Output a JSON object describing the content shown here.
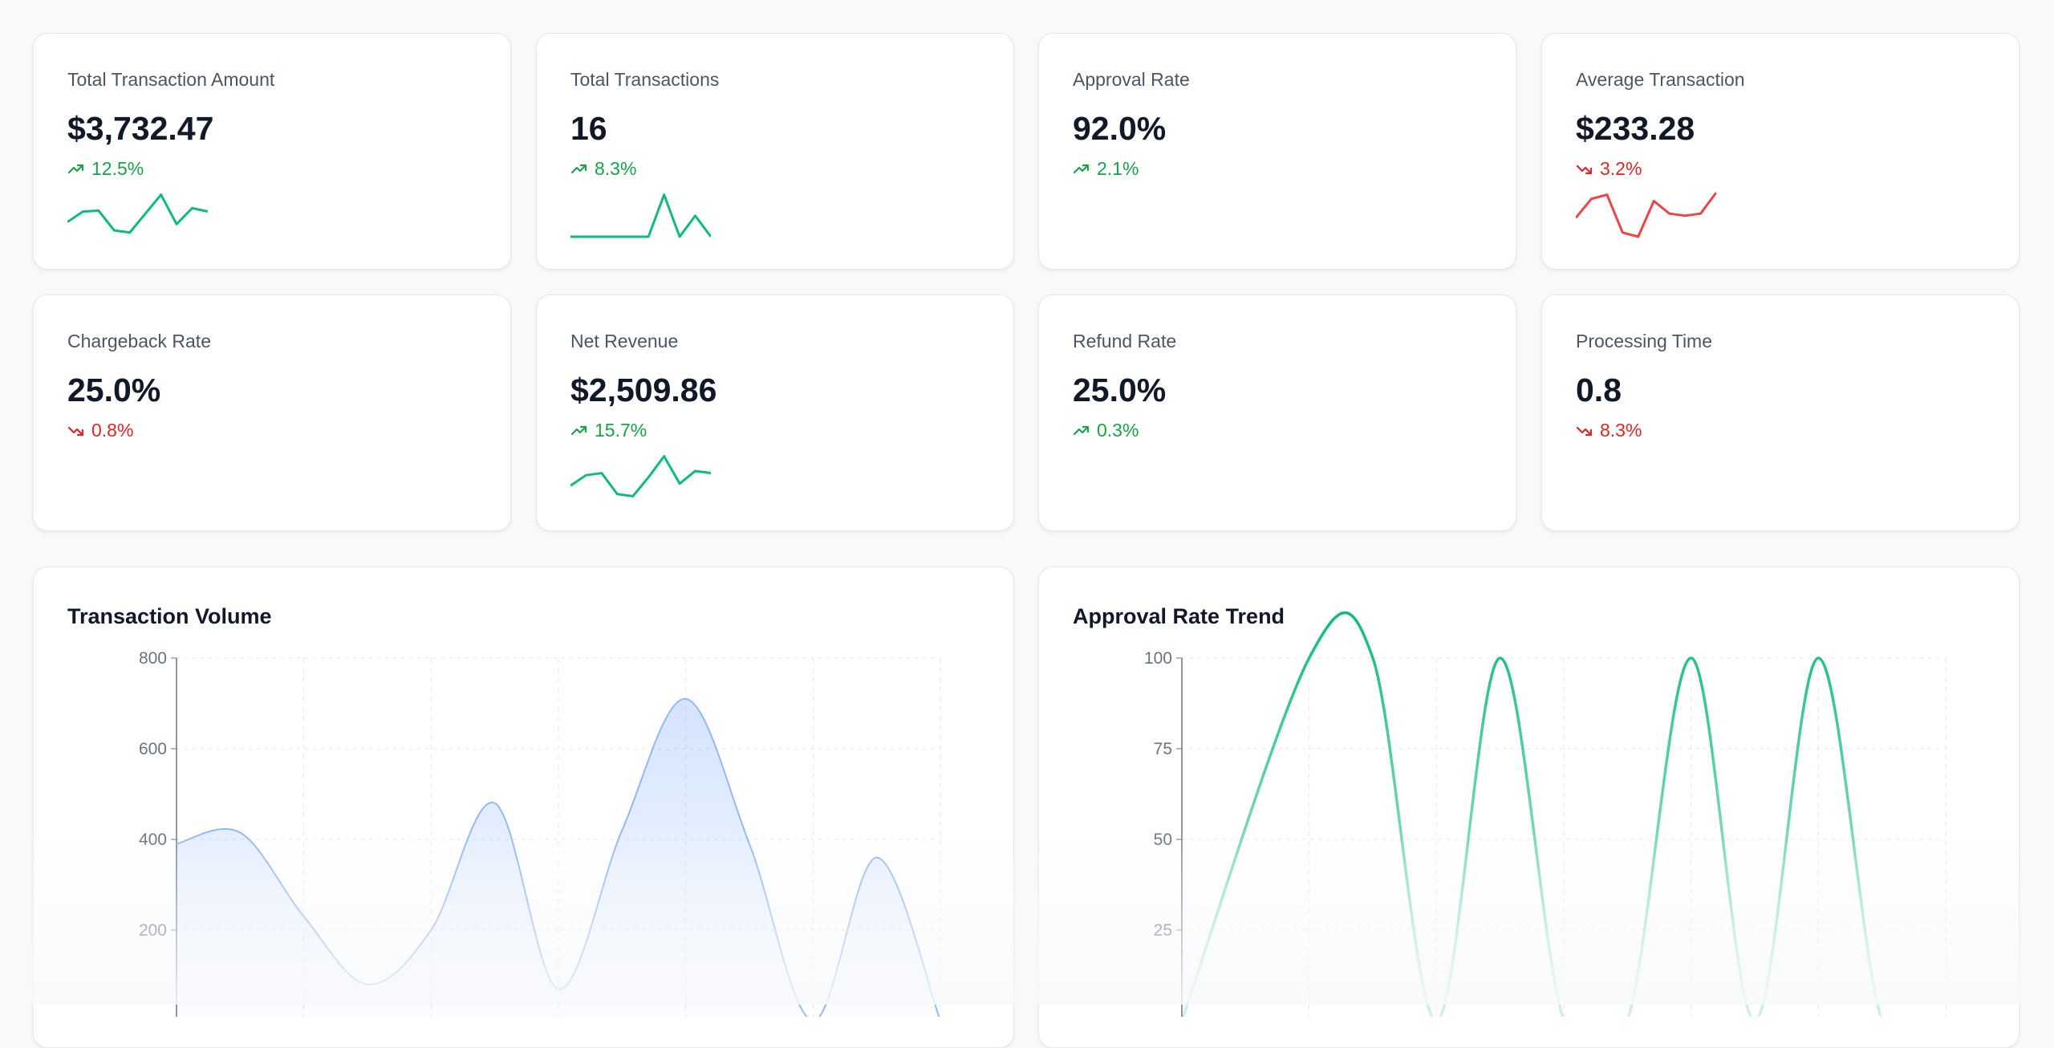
{
  "kpis": [
    {
      "label": "Total Transaction Amount",
      "value": "$3,732.47",
      "trend": "12.5%",
      "direction": "up",
      "spark": [
        0.35,
        0.6,
        0.62,
        0.15,
        0.1,
        0.55,
        1.0,
        0.3,
        0.68,
        0.6
      ]
    },
    {
      "label": "Total Transactions",
      "value": "16",
      "trend": "8.3%",
      "direction": "up",
      "spark": [
        0,
        0,
        0,
        0,
        0,
        0,
        1.0,
        0,
        0.5,
        0
      ]
    },
    {
      "label": "Approval Rate",
      "value": "92.0%",
      "trend": "2.1%",
      "direction": "up",
      "spark": []
    },
    {
      "label": "Average Transaction",
      "value": "$233.28",
      "trend": "3.2%",
      "direction": "down",
      "spark": [
        0.45,
        0.9,
        1.0,
        0.1,
        0.0,
        0.85,
        0.55,
        0.5,
        0.55,
        1.1
      ]
    },
    {
      "label": "Chargeback Rate",
      "value": "25.0%",
      "trend": "0.8%",
      "direction": "down",
      "spark": []
    },
    {
      "label": "Net Revenue",
      "value": "$2,509.86",
      "trend": "15.7%",
      "direction": "up",
      "spark": [
        0.3,
        0.55,
        0.6,
        0.1,
        0.05,
        0.5,
        1.0,
        0.35,
        0.65,
        0.6
      ]
    },
    {
      "label": "Refund Rate",
      "value": "25.0%",
      "trend": "0.3%",
      "direction": "up",
      "spark": []
    },
    {
      "label": "Processing Time",
      "value": "0.8",
      "trend": "8.3%",
      "direction": "down",
      "spark": []
    }
  ],
  "colors": {
    "up": "#16a34a",
    "down": "#dc2626",
    "spark_up": "#10b981",
    "spark_down": "#ef4444",
    "volume": "#3b82f6",
    "approval": "#10b981"
  },
  "chart_data": [
    {
      "type": "area",
      "title": "Transaction Volume",
      "yticks": [
        "800",
        "600",
        "400",
        "200"
      ],
      "ylim": [
        0,
        800
      ],
      "x": [
        0,
        0.5,
        1,
        1.5,
        2,
        2.5,
        3,
        3.5,
        4,
        4.5,
        5,
        5.5,
        6
      ],
      "values": [
        390,
        415,
        230,
        80,
        200,
        480,
        70,
        420,
        710,
        390,
        0,
        360,
        0
      ],
      "grid": true
    },
    {
      "type": "line",
      "title": "Approval Rate Trend",
      "yticks": [
        "100",
        "75",
        "50",
        "25"
      ],
      "ylim": [
        0,
        100
      ],
      "x": [
        0,
        1,
        1.5,
        2,
        2.5,
        3,
        3.5,
        4,
        4.5,
        5,
        5.5,
        6
      ],
      "values": [
        0,
        100,
        100,
        0,
        100,
        0,
        0,
        100,
        0,
        100,
        0,
        0
      ],
      "grid": true
    }
  ]
}
